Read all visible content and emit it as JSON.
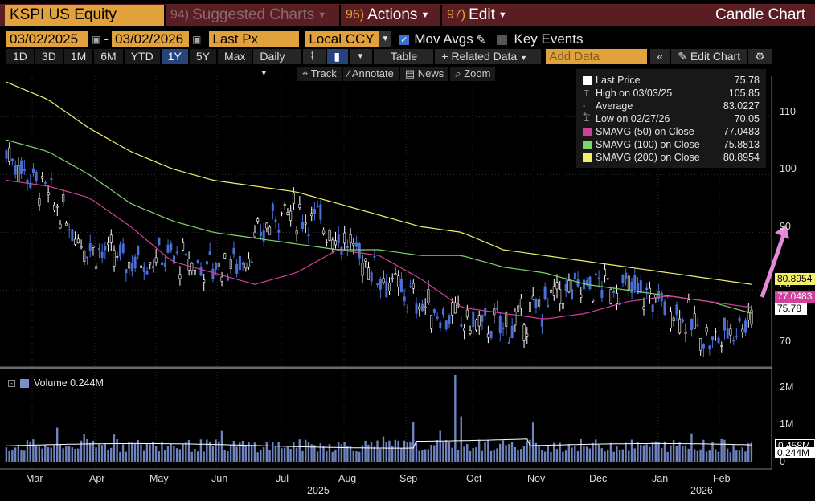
{
  "topbar": {
    "ticker": "KSPI US Equity",
    "suggested_num": "94)",
    "suggested": "Suggested Charts",
    "actions_num": "96)",
    "actions": "Actions",
    "edit_num": "97)",
    "edit": "Edit",
    "title": "Candle Chart"
  },
  "row2": {
    "start_date": "03/02/2025",
    "dash": "-",
    "end_date": "03/02/2026",
    "field": "Last Px",
    "currency": "Local CCY",
    "mov_avgs": "Mov Avgs",
    "key_events": "Key Events"
  },
  "row3": {
    "periods": [
      "1D",
      "3D",
      "1M",
      "6M",
      "YTD",
      "1Y",
      "5Y",
      "Max"
    ],
    "selected": "1Y",
    "frequency": "Daily",
    "table": "Table",
    "related": "+ Related Data",
    "add_data_placeholder": "Add Data",
    "edit_chart": "Edit Chart"
  },
  "row4": {
    "track": "Track",
    "annotate": "Annotate",
    "news": "News",
    "zoom": "Zoom"
  },
  "legend": {
    "rows": [
      {
        "label": "Last Price",
        "value": "75.78",
        "color": "#ffffff"
      },
      {
        "label": "High on 03/03/25",
        "value": "105.85",
        "color": ""
      },
      {
        "label": "Average",
        "value": "83.0227",
        "color": ""
      },
      {
        "label": "Low on 02/27/26",
        "value": "70.05",
        "color": ""
      },
      {
        "label": "SMAVG (50)  on Close",
        "value": "77.0483",
        "color": "#d0409a"
      },
      {
        "label": "SMAVG (100)  on Close",
        "value": "75.8813",
        "color": "#7ed36a"
      },
      {
        "label": "SMAVG (200)  on Close",
        "value": "80.8954",
        "color": "#f3ef6b"
      }
    ]
  },
  "price_axis": {
    "ticks": [
      "110",
      "100",
      "90",
      "80",
      "70"
    ],
    "tag_sma200": "80.8954",
    "tag_sma50": "77.0483",
    "tag_last": "75.78"
  },
  "volume": {
    "label": "Volume 0.244M",
    "ticks": [
      "2M",
      "1M",
      "0"
    ],
    "tag_avg": "0.458M",
    "tag_last": "0.244M"
  },
  "xaxis": {
    "months": [
      "Mar",
      "Apr",
      "May",
      "Jun",
      "Jul",
      "Aug",
      "Sep",
      "Oct",
      "Nov",
      "Dec",
      "Jan",
      "Feb"
    ],
    "year1": "2025",
    "year2": "2026"
  },
  "colors": {
    "sma50": "#d0409a",
    "sma100": "#7ed36a",
    "sma200": "#f3ef6b",
    "up": "#ffffff",
    "down": "#4a6fd8",
    "accent": "#e1a13c",
    "arrow": "#e48ad6"
  },
  "chart_data": {
    "type": "line",
    "title": "Candle Chart",
    "ylim": [
      67,
      117
    ],
    "series": [
      {
        "name": "SMAVG (200)",
        "values": [
          116,
          113,
          108,
          104,
          101,
          99,
          98,
          97,
          95,
          93,
          91,
          90,
          87,
          86,
          85,
          84,
          83,
          82,
          81
        ]
      },
      {
        "name": "SMAVG (100)",
        "values": [
          106,
          104,
          100,
          95,
          92,
          90,
          89,
          88,
          87,
          87,
          86,
          86,
          84,
          83,
          81,
          80,
          79,
          78,
          76
        ]
      },
      {
        "name": "SMAVG (50)",
        "values": [
          99,
          98,
          96,
          91,
          85,
          83,
          81,
          83,
          87,
          86,
          82,
          77,
          76,
          75,
          76,
          78,
          79,
          78,
          77
        ]
      },
      {
        "name": "Last Price",
        "values": [
          104,
          97,
          88,
          85,
          86,
          84,
          85,
          94,
          92,
          86,
          80,
          76,
          74,
          74,
          79,
          81,
          80,
          77,
          71,
          75.78
        ]
      }
    ]
  }
}
